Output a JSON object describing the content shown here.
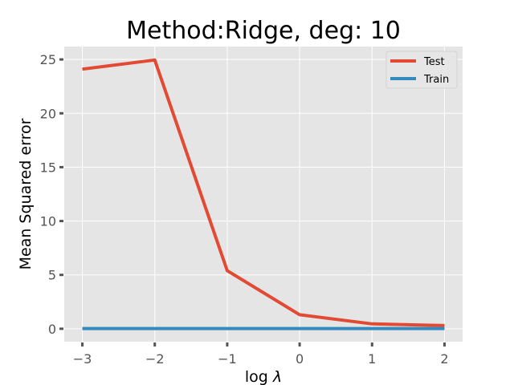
{
  "chart_data": {
    "type": "line",
    "title": "Method:Ridge, deg: 10",
    "xlabel": "log λ",
    "ylabel": "Mean Squared error",
    "x": [
      -3,
      -2,
      -1,
      0,
      1,
      2
    ],
    "xticks": [
      -3,
      -2,
      -1,
      0,
      1,
      2
    ],
    "xtick_labels": [
      "−3",
      "−2",
      "−1",
      "0",
      "1",
      "2"
    ],
    "yticks": [
      0,
      5,
      10,
      15,
      20,
      25
    ],
    "ytick_labels": [
      "0",
      "5",
      "10",
      "15",
      "20",
      "25"
    ],
    "xlim": [
      -3.25,
      2.25
    ],
    "ylim": [
      -1.2,
      26.2
    ],
    "grid": true,
    "legend_position": "top-right",
    "series": [
      {
        "name": "Test",
        "color": "#E24A33",
        "values": [
          24.1,
          24.95,
          5.4,
          1.3,
          0.45,
          0.3
        ]
      },
      {
        "name": "Train",
        "color": "#348ABD",
        "values": [
          0.02,
          0.02,
          0.02,
          0.02,
          0.02,
          0.02
        ]
      }
    ]
  }
}
